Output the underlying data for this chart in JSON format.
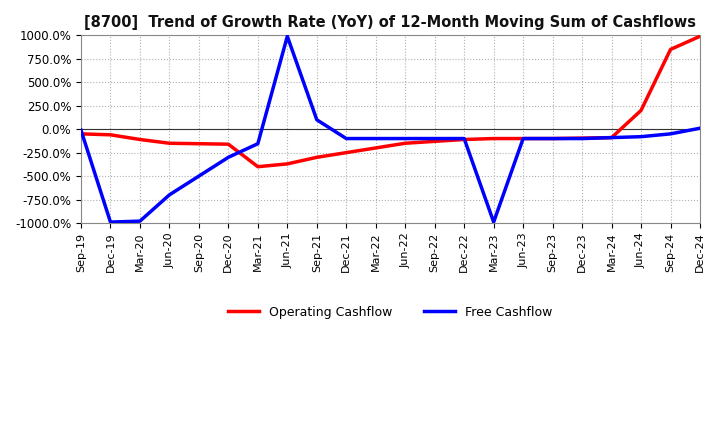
{
  "title": "[8700]  Trend of Growth Rate (YoY) of 12-Month Moving Sum of Cashflows",
  "ylim": [
    -1000,
    1000
  ],
  "yticks": [
    -1000,
    -750,
    -500,
    -250,
    0,
    250,
    500,
    750,
    1000
  ],
  "ytick_labels": [
    "-1000.0%",
    "-750.0%",
    "-500.0%",
    "-250.0%",
    "0.0%",
    "250.0%",
    "500.0%",
    "750.0%",
    "1000.0%"
  ],
  "legend_labels": [
    "Operating Cashflow",
    "Free Cashflow"
  ],
  "legend_colors": [
    "red",
    "blue"
  ],
  "background_color": "#ffffff",
  "grid_color": "#b0b0b0",
  "x_labels": [
    "Sep-19",
    "Dec-19",
    "Mar-20",
    "Jun-20",
    "Sep-20",
    "Dec-20",
    "Mar-21",
    "Jun-21",
    "Sep-21",
    "Dec-21",
    "Mar-22",
    "Jun-22",
    "Sep-22",
    "Dec-22",
    "Mar-23",
    "Jun-23",
    "Sep-23",
    "Dec-23",
    "Mar-24",
    "Jun-24",
    "Sep-24",
    "Dec-24"
  ],
  "operating_cashflow": [
    -50,
    -60,
    -110,
    -150,
    -155,
    -160,
    -400,
    -370,
    -300,
    -250,
    -200,
    -150,
    -130,
    -110,
    -100,
    -100,
    -100,
    -95,
    -90,
    200,
    850,
    990
  ],
  "free_cashflow": [
    -10,
    -990,
    -980,
    -700,
    -500,
    -300,
    -155,
    990,
    100,
    -100,
    -100,
    -100,
    -100,
    -100,
    -990,
    -100,
    -100,
    -100,
    -90,
    -80,
    -50,
    10
  ]
}
